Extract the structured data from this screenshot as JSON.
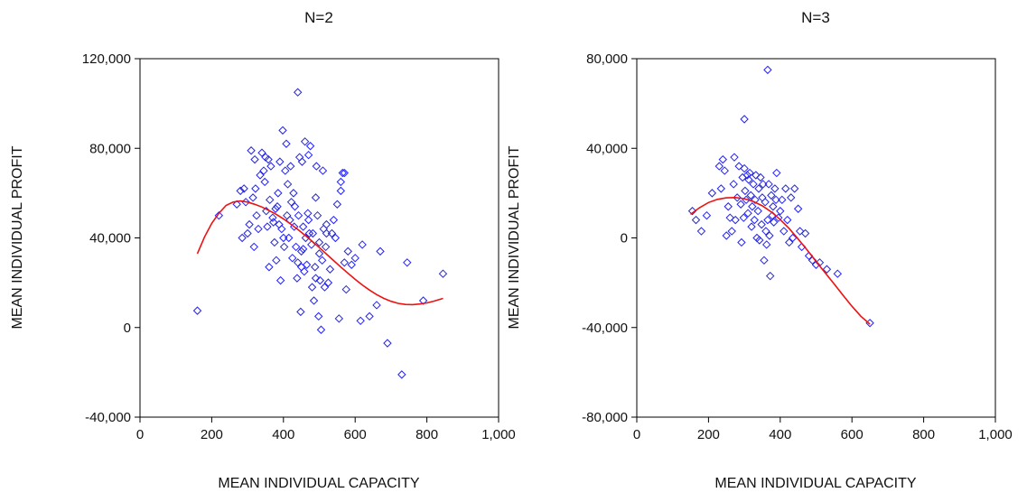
{
  "chart_data": [
    {
      "type": "scatter",
      "title": "N=2",
      "xlabel": "MEAN INDIVIDUAL CAPACITY",
      "ylabel": "MEAN INDIVIDUAL PROFIT",
      "xlim": [
        0,
        1000
      ],
      "ylim": [
        -40000,
        120000
      ],
      "xticks": [
        0,
        200,
        400,
        600,
        800,
        1000
      ],
      "xtick_labels": [
        "0",
        "200",
        "400",
        "600",
        "800",
        "1,000"
      ],
      "yticks": [
        -40000,
        0,
        40000,
        80000,
        120000
      ],
      "ytick_labels": [
        "-40,000",
        "0",
        "40,000",
        "80,000",
        "120,000"
      ],
      "marker_color": "#2222ee",
      "fit_color": "#ee1111",
      "grid": false,
      "series": [
        {
          "kind": "scatter",
          "x": [
            160,
            220,
            270,
            280,
            285,
            290,
            295,
            300,
            305,
            310,
            315,
            318,
            320,
            322,
            325,
            330,
            335,
            340,
            345,
            348,
            350,
            352,
            355,
            358,
            360,
            362,
            365,
            370,
            372,
            375,
            378,
            380,
            383,
            385,
            388,
            390,
            392,
            395,
            398,
            400,
            402,
            405,
            408,
            410,
            412,
            415,
            418,
            420,
            422,
            425,
            428,
            430,
            432,
            435,
            438,
            440,
            442,
            445,
            448,
            450,
            452,
            455,
            458,
            460,
            462,
            465,
            468,
            470,
            472,
            475,
            478,
            480,
            482,
            485,
            488,
            490,
            492,
            495,
            498,
            500,
            502,
            505,
            508,
            510,
            512,
            515,
            518,
            520,
            525,
            530,
            535,
            540,
            545,
            550,
            555,
            560,
            565,
            570,
            575,
            580,
            590,
            600,
            615,
            620,
            640,
            660,
            670,
            690,
            730,
            745,
            790,
            845,
            440,
            450,
            455,
            470,
            490,
            500,
            520,
            560,
            570
          ],
          "y": [
            7500,
            50000,
            55000,
            61000,
            40000,
            62000,
            56000,
            42000,
            46000,
            79000,
            58000,
            36000,
            75000,
            62000,
            50000,
            44000,
            68000,
            78000,
            70000,
            65000,
            76000,
            52000,
            45000,
            75000,
            27000,
            57000,
            72000,
            49000,
            47000,
            38000,
            53000,
            30000,
            54000,
            60000,
            46000,
            74000,
            21000,
            44000,
            88000,
            40000,
            36000,
            70000,
            82000,
            50000,
            64000,
            40000,
            48000,
            72000,
            56000,
            31000,
            60000,
            45000,
            54000,
            36000,
            22000,
            29000,
            50000,
            76000,
            7000,
            34000,
            74000,
            45000,
            25000,
            83000,
            40000,
            28000,
            51000,
            77000,
            42000,
            81000,
            37000,
            18000,
            42000,
            12000,
            27000,
            22000,
            72000,
            50000,
            5000,
            33000,
            21000,
            -1000,
            30000,
            70000,
            44000,
            18000,
            36000,
            46000,
            20000,
            26000,
            42000,
            48000,
            40000,
            55000,
            4000,
            61000,
            69000,
            69000,
            17000,
            34000,
            28000,
            31000,
            3000,
            37000,
            5000,
            10000,
            34000,
            -7000,
            -21000,
            29000,
            12000,
            24000,
            105000,
            27000,
            35000,
            48000,
            58000,
            38000,
            42000,
            65000,
            29000
          ]
        },
        {
          "kind": "line",
          "x": [
            160,
            180,
            200,
            220,
            240,
            260,
            280,
            300,
            320,
            340,
            360,
            380,
            400,
            420,
            440,
            460,
            480,
            500,
            520,
            540,
            560,
            580,
            600,
            620,
            640,
            660,
            680,
            700,
            720,
            740,
            760,
            780,
            800,
            820,
            845
          ],
          "y": [
            33000,
            40500,
            46500,
            51000,
            54500,
            56000,
            56500,
            56000,
            55000,
            53800,
            52200,
            50500,
            48500,
            46200,
            43800,
            41200,
            38500,
            35700,
            32800,
            29900,
            27000,
            24200,
            21500,
            19000,
            16700,
            14700,
            13000,
            11700,
            10800,
            10300,
            10200,
            10500,
            11000,
            11800,
            13000
          ]
        }
      ]
    },
    {
      "type": "scatter",
      "title": "N=3",
      "xlabel": "MEAN INDIVIDUAL CAPACITY",
      "ylabel": "MEAN INDIVIDUAL PROFIT",
      "xlim": [
        0,
        1000
      ],
      "ylim": [
        -80000,
        80000
      ],
      "xticks": [
        0,
        200,
        400,
        600,
        800,
        1000
      ],
      "xtick_labels": [
        "0",
        "200",
        "400",
        "600",
        "800",
        "1,000"
      ],
      "yticks": [
        -80000,
        -40000,
        0,
        40000,
        80000
      ],
      "ytick_labels": [
        "-80,000",
        "-40,000",
        "0",
        "40,000",
        "80,000"
      ],
      "marker_color": "#2222ee",
      "fit_color": "#ee1111",
      "grid": false,
      "series": [
        {
          "kind": "scatter",
          "x": [
            155,
            165,
            180,
            195,
            210,
            230,
            235,
            240,
            245,
            250,
            255,
            260,
            265,
            270,
            272,
            275,
            280,
            285,
            290,
            292,
            295,
            298,
            300,
            302,
            305,
            308,
            310,
            312,
            315,
            318,
            320,
            322,
            325,
            328,
            330,
            332,
            335,
            338,
            340,
            342,
            345,
            348,
            350,
            352,
            355,
            358,
            360,
            362,
            365,
            368,
            370,
            372,
            375,
            378,
            380,
            382,
            385,
            388,
            390,
            395,
            400,
            405,
            410,
            415,
            420,
            425,
            430,
            435,
            440,
            450,
            455,
            460,
            470,
            480,
            490,
            500,
            510,
            530,
            560,
            650,
            365,
            300
          ],
          "y": [
            12000,
            8000,
            3000,
            10000,
            20000,
            32000,
            22000,
            35000,
            30000,
            1000,
            14000,
            9000,
            3000,
            24000,
            36000,
            8000,
            18000,
            32000,
            15000,
            -2000,
            27000,
            9000,
            31000,
            21000,
            17000,
            28000,
            11000,
            26000,
            29000,
            19000,
            5000,
            14000,
            24000,
            8000,
            17000,
            28000,
            0,
            12000,
            22000,
            -1000,
            27000,
            6000,
            18000,
            24000,
            -10000,
            16000,
            3000,
            -3000,
            8000,
            24000,
            1000,
            -17000,
            19000,
            10000,
            14000,
            7000,
            22000,
            17000,
            29000,
            9000,
            12000,
            17000,
            3000,
            22000,
            8000,
            -2000,
            18000,
            0,
            22000,
            13000,
            3000,
            -4000,
            2000,
            -8000,
            -10000,
            -12000,
            -11000,
            -14000,
            -16000,
            -38000,
            75000,
            53000
          ]
        },
        {
          "kind": "line",
          "x": [
            150,
            175,
            200,
            225,
            250,
            275,
            300,
            325,
            350,
            375,
            400,
            425,
            450,
            475,
            500,
            525,
            550,
            575,
            600,
            625,
            650
          ],
          "y": [
            10500,
            13500,
            15800,
            17200,
            17900,
            18000,
            17500,
            16300,
            14300,
            11600,
            8200,
            4200,
            -500,
            -5400,
            -10500,
            -15500,
            -20500,
            -25600,
            -30500,
            -35000,
            -38500
          ]
        }
      ]
    }
  ]
}
